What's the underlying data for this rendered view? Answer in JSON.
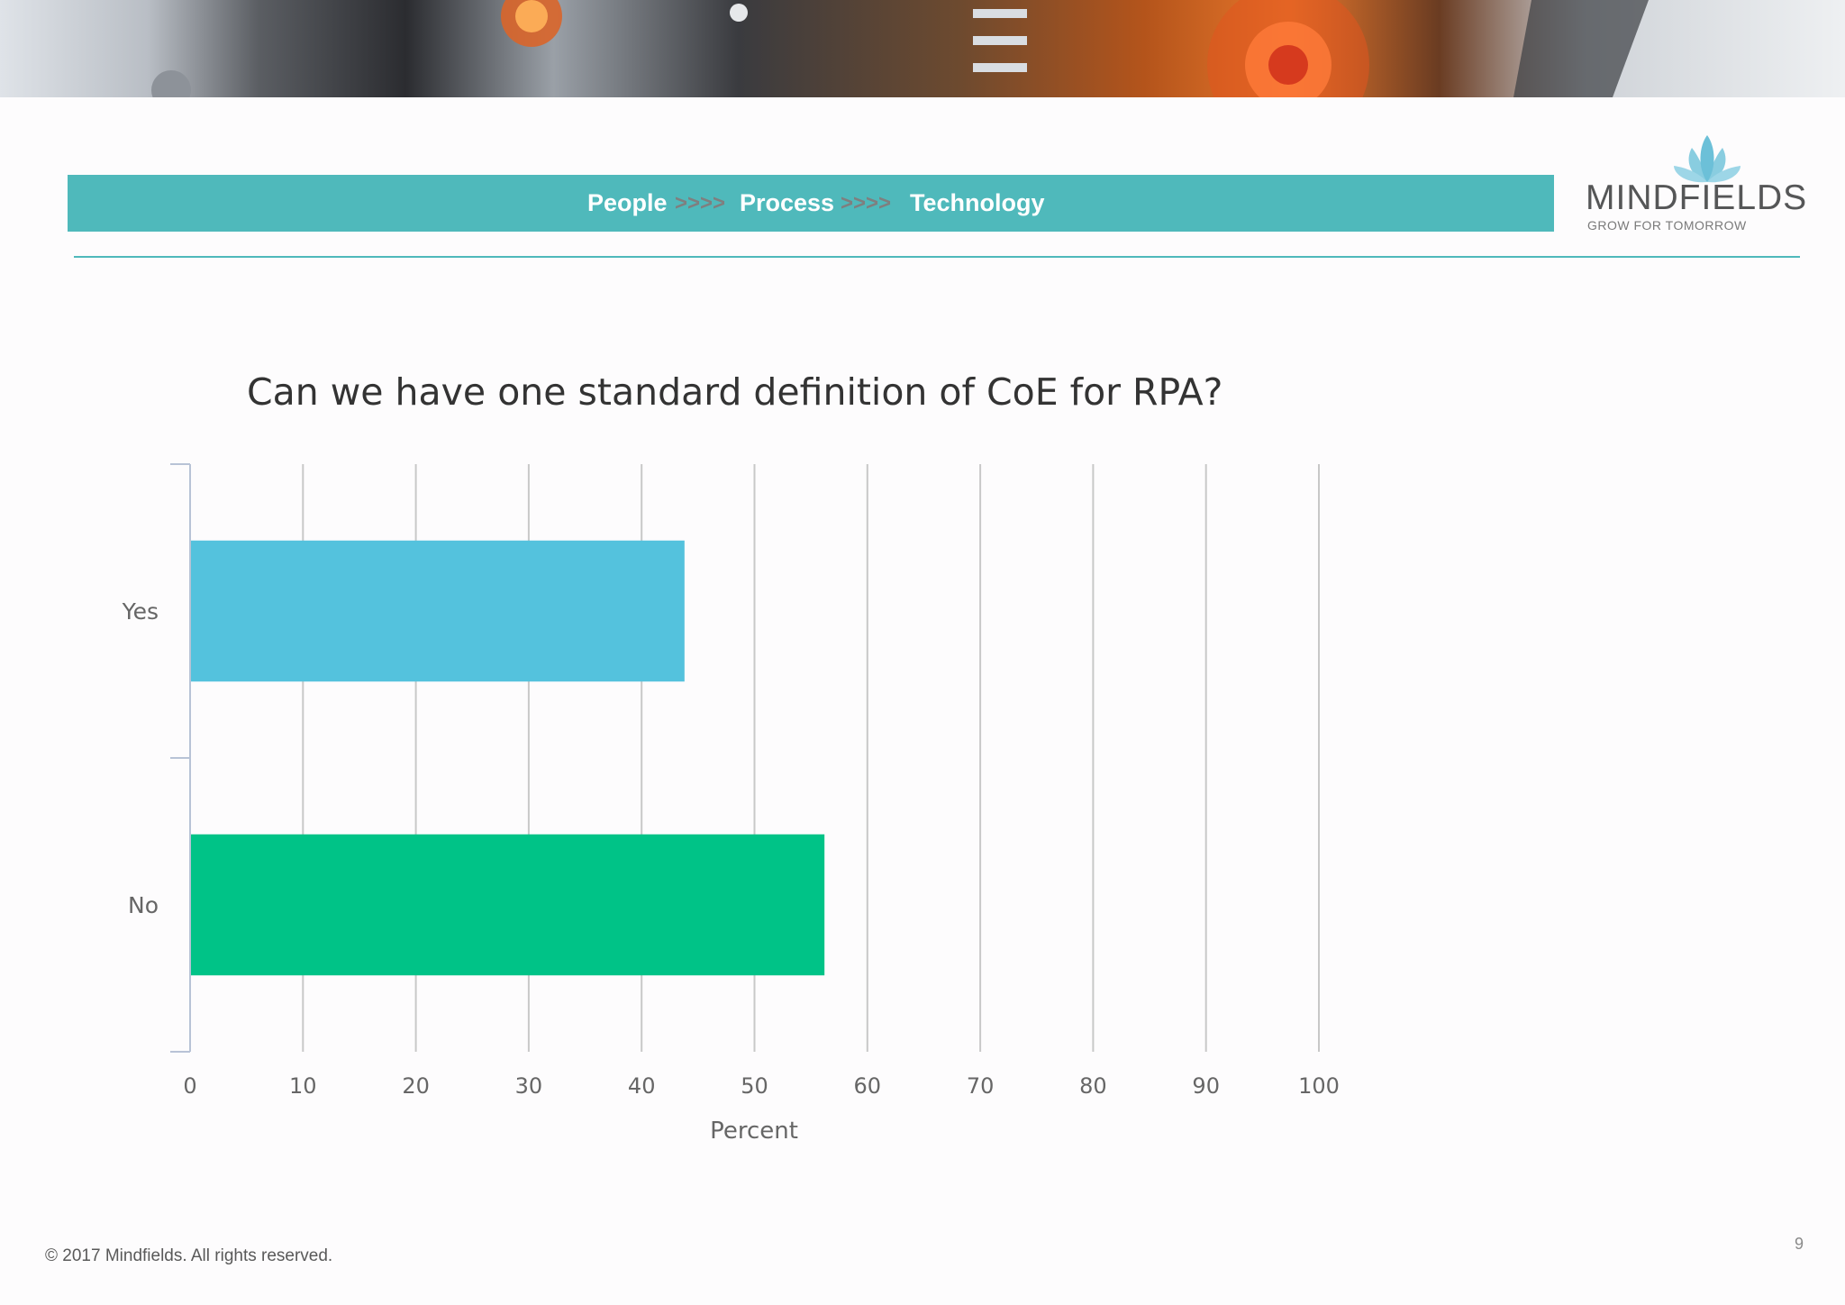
{
  "header": {
    "steps": [
      "People",
      "Process",
      "Technology"
    ],
    "separator": ">>>>"
  },
  "logo": {
    "name": "MINDFIELDS",
    "tagline": "GROW FOR TOMORROW",
    "color": "#6cc0d8"
  },
  "chart_data": {
    "type": "bar",
    "orientation": "horizontal",
    "title": "Can we have one standard definition of CoE for RPA?",
    "categories": [
      "Yes",
      "No"
    ],
    "values": [
      43.8,
      56.2
    ],
    "colors": [
      "#54c2dd",
      "#00c387"
    ],
    "xlabel": "Percent",
    "ylabel": "",
    "xlim": [
      0,
      100
    ],
    "xticks": [
      0,
      10,
      20,
      30,
      40,
      50,
      60,
      70,
      80,
      90,
      100
    ],
    "grid": true
  },
  "footer": {
    "copyright": "© 2017  Mindfields. All rights reserved.",
    "page_number": "9"
  }
}
